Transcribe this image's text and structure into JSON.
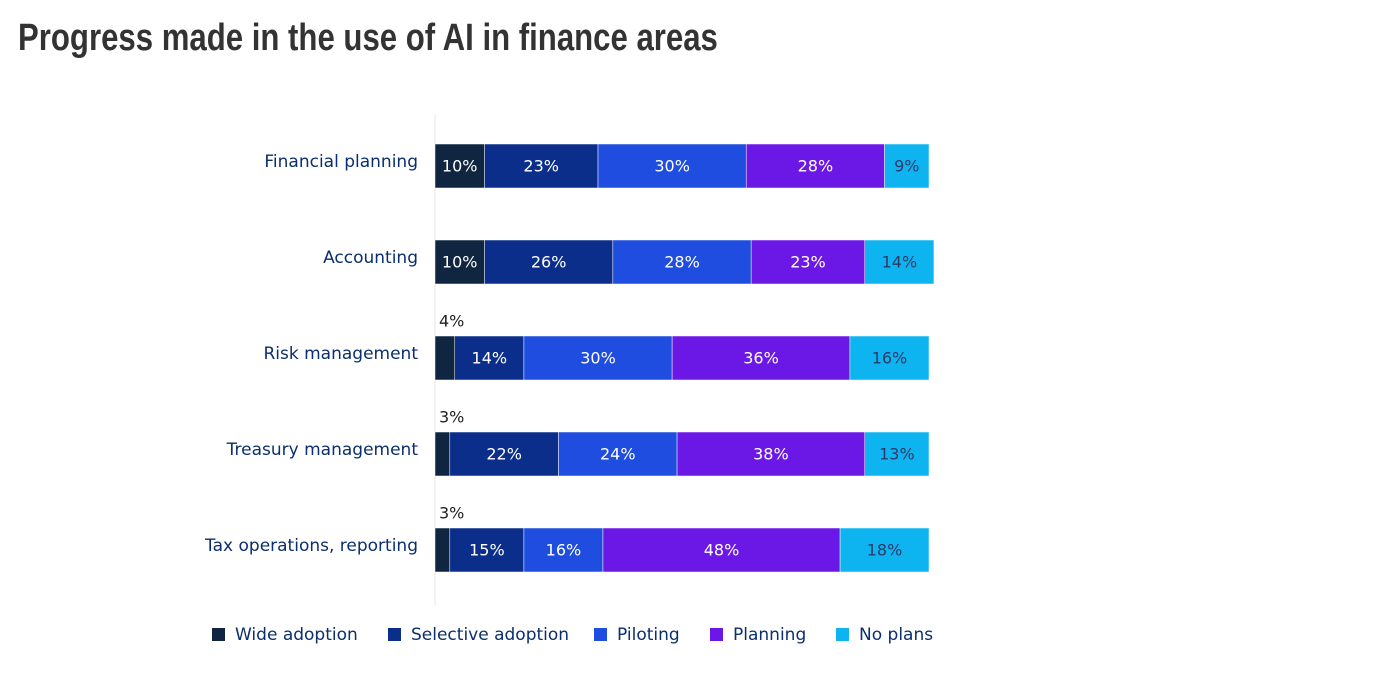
{
  "chart_data": {
    "type": "stacked-bar-horizontal",
    "title": "Progress made in the use of AI in finance areas",
    "categories": [
      "Financial planning",
      "Accounting",
      "Risk management",
      "Treasury management",
      "Tax operations, reporting"
    ],
    "xlim": [
      0,
      100
    ],
    "series": [
      {
        "name": "Wide adoption",
        "color": "#0f2540",
        "values": [
          10,
          10,
          4,
          3,
          3
        ],
        "value_labels": [
          "10%",
          "10%",
          "4%",
          "3%",
          "3%"
        ]
      },
      {
        "name": "Selective adoption",
        "color": "#0a2e8a",
        "values": [
          23,
          26,
          14,
          22,
          15
        ],
        "value_labels": [
          "23%",
          "26%",
          "14%",
          "22%",
          "15%"
        ]
      },
      {
        "name": "Piloting",
        "color": "#1f4de0",
        "values": [
          30,
          28,
          30,
          24,
          16
        ],
        "value_labels": [
          "30%",
          "28%",
          "30%",
          "24%",
          "16%"
        ]
      },
      {
        "name": "Planning",
        "color": "#6b17e6",
        "values": [
          28,
          23,
          36,
          38,
          48
        ],
        "value_labels": [
          "28%",
          "23%",
          "36%",
          "38%",
          "48%"
        ]
      },
      {
        "name": "No plans",
        "color": "#0eb4f0",
        "values": [
          9,
          14,
          16,
          13,
          18
        ],
        "value_labels": [
          "9%",
          "14%",
          "16%",
          "13%",
          "18%"
        ]
      }
    ]
  }
}
